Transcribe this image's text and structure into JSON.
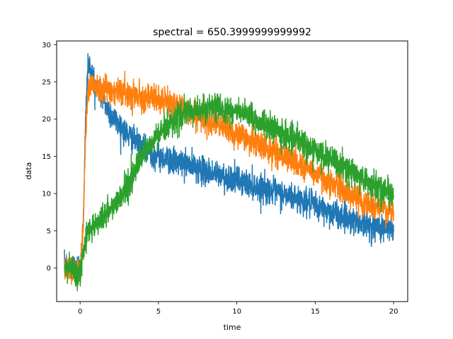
{
  "chart_data": {
    "type": "line",
    "title": "spectral = 650.3999999999992",
    "xlabel": "time",
    "ylabel": "data",
    "xlim": [
      -1.5,
      20.9
    ],
    "ylim": [
      -4.5,
      30.5
    ],
    "xticks": [
      0,
      5,
      10,
      15,
      20
    ],
    "yticks": [
      0,
      5,
      10,
      15,
      20,
      25,
      30
    ],
    "grid": false,
    "legend": false,
    "series": [
      {
        "color": "#1f77b4",
        "noise": 0.9,
        "x": [
          -1,
          -0.5,
          0,
          0.2,
          0.35,
          0.5,
          0.7,
          1,
          1.5,
          2,
          3,
          4,
          5,
          6,
          7,
          8,
          10,
          12,
          14,
          16,
          18,
          20
        ],
        "y": [
          0,
          0.3,
          0,
          6,
          20,
          27.5,
          26.5,
          24.5,
          22.5,
          20.5,
          18,
          16,
          15,
          14.3,
          13.8,
          13,
          11.8,
          10.5,
          9.2,
          7.5,
          6,
          5
        ]
      },
      {
        "color": "#ff7f0e",
        "noise": 0.9,
        "x": [
          -1,
          -0.5,
          0,
          0.2,
          0.35,
          0.5,
          0.8,
          1,
          2,
          3,
          4,
          5,
          6,
          7,
          8,
          9,
          10,
          12,
          14,
          16,
          18,
          20
        ],
        "y": [
          0,
          0,
          -0.5,
          6,
          18,
          24,
          25,
          24.5,
          24,
          23.5,
          23,
          22.5,
          22,
          21,
          20,
          19,
          18,
          16,
          14,
          11.5,
          9,
          7.3
        ]
      },
      {
        "color": "#2ca02c",
        "noise": 0.9,
        "x": [
          -1,
          -0.5,
          0,
          0.2,
          0.35,
          0.5,
          1,
          2,
          3,
          4,
          5,
          6,
          7,
          8,
          9,
          10,
          12,
          14,
          16,
          18,
          20
        ],
        "y": [
          0,
          0,
          -1,
          2.5,
          4,
          5,
          6,
          8,
          11,
          15,
          18,
          20,
          21,
          21.5,
          21.5,
          21,
          19,
          17,
          14.5,
          12,
          9.8
        ]
      }
    ]
  }
}
